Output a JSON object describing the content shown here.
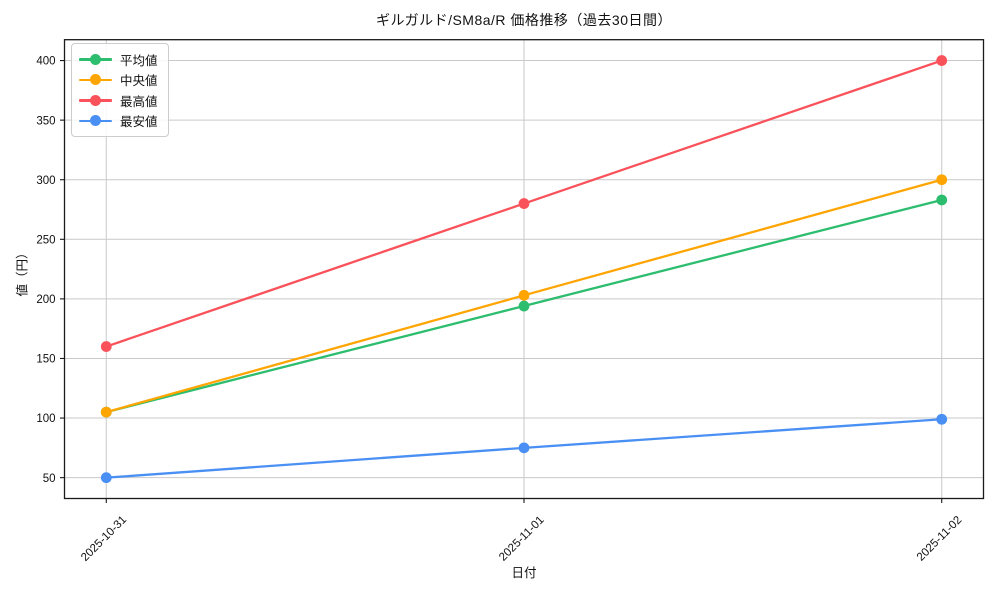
{
  "chart_data": {
    "type": "line",
    "title": "ギルガルド/SM8a/R 価格推移（過去30日間）",
    "xlabel": "日付",
    "ylabel": "値（円）",
    "categories": [
      "2025-10-31",
      "2025-11-01",
      "2025-11-02"
    ],
    "series": [
      {
        "id": "avg",
        "name": "平均値",
        "color": "#2dbd6e",
        "values": [
          105,
          194,
          283
        ]
      },
      {
        "id": "median",
        "name": "中央値",
        "color": "#ffa502",
        "values": [
          105,
          203,
          300
        ]
      },
      {
        "id": "max",
        "name": "最高値",
        "color": "#fa525a",
        "values": [
          160,
          280,
          400
        ]
      },
      {
        "id": "min",
        "name": "最安値",
        "color": "#4a90f4",
        "values": [
          50,
          75,
          99
        ]
      }
    ],
    "yticks": [
      50,
      100,
      150,
      200,
      250,
      300,
      350,
      400
    ],
    "ylim": [
      32.5,
      417.5
    ],
    "grid": true,
    "grid_color": "#c9c9c9",
    "spine_color": "#1a1a1a",
    "legend_position": "upper-left"
  }
}
